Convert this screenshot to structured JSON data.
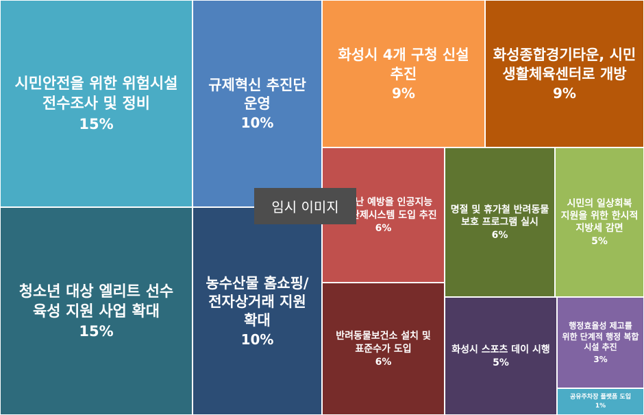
{
  "chart_data": {
    "type": "treemap",
    "items": [
      {
        "label": "시민안전을 위한 위험시설 전수조사 및 정비",
        "value": 15,
        "value_label": "15%",
        "color": "#4aacc5"
      },
      {
        "label": "청소년 대상 엘리트 선수 육성 지원 사업 확대",
        "value": 15,
        "value_label": "15%",
        "color": "#2e6b7c"
      },
      {
        "label": "규제혁신 추진단 운영",
        "value": 10,
        "value_label": "10%",
        "color": "#4f81bd"
      },
      {
        "label": "농수산물 홈쇼핑/ 전자상거래 지원 확대",
        "value": 10,
        "value_label": "10%",
        "color": "#2c4d75"
      },
      {
        "label": "화성시 4개 구청 신설 추진",
        "value": 9,
        "value_label": "9%",
        "color": "#f79646"
      },
      {
        "label": "화성종합경기타운, 시민 생활체육센터로 개방",
        "value": 9,
        "value_label": "9%",
        "color": "#b65708"
      },
      {
        "label": "및 재난 예방을 인공지능 통합 관제시스템 도입 추진",
        "value": 6,
        "value_label": "6%",
        "color": "#c0504d"
      },
      {
        "label": "반려동물보건소 설치 및 표준수가 도입",
        "value": 6,
        "value_label": "6%",
        "color": "#772c2a"
      },
      {
        "label": "명절 및 휴가철 반려동물 보호 프로그램 실시",
        "value": 6,
        "value_label": "6%",
        "color": "#5f7530"
      },
      {
        "label": "화성시 스포츠 데이 시행",
        "value": 5,
        "value_label": "5%",
        "color": "#4d3b62"
      },
      {
        "label": "시민의 일상회복 지원을 위한 한시적 지방세 감면",
        "value": 5,
        "value_label": "5%",
        "color": "#9bbb59"
      },
      {
        "label": "행정효율성 제고를 위한 단계적 행정 복합 시설 추진",
        "value": 3,
        "value_label": "3%",
        "color": "#8064a2"
      },
      {
        "label": "공유주차장 플랫폼 도입",
        "value": 1,
        "value_label": "1%",
        "color": "#4bacc6"
      }
    ]
  },
  "overlay": {
    "placeholder_text": "임시 이미지"
  }
}
